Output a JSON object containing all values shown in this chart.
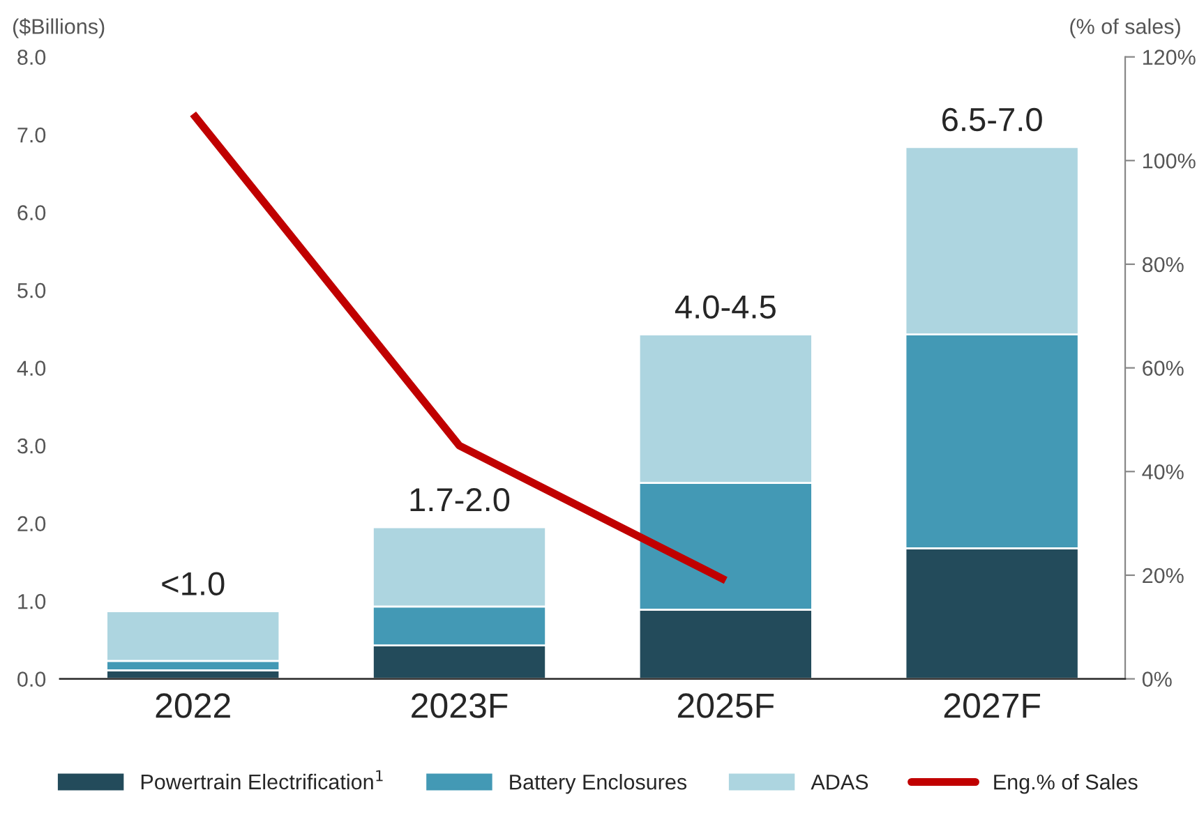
{
  "chart_data": {
    "type": "bar",
    "stacked": true,
    "categories": [
      "2022",
      "2023F",
      "2025F",
      "2027F"
    ],
    "series": [
      {
        "name": "Powertrain Electrification$^{1}$",
        "color": "#234b5b",
        "values": [
          0.11,
          0.43,
          0.89,
          1.68
        ]
      },
      {
        "name": "Battery Enclosures",
        "color": "#4399b5",
        "values": [
          0.12,
          0.5,
          1.63,
          2.75
        ]
      },
      {
        "name": "ADAS",
        "color": "#add5e0",
        "values": [
          0.64,
          1.02,
          1.91,
          2.41
        ]
      },
      {
        "name": "Eng.% of Sales",
        "type": "line",
        "axis": "y2",
        "color": "#c00000",
        "values": [
          109,
          45,
          19,
          null
        ]
      }
    ],
    "totals": [
      "<1.0",
      "1.7-2.0",
      "4.0-4.5",
      "6.5-7.0"
    ],
    "ylabel": "($Billions)",
    "y2label": "(% of sales)",
    "ylim": [
      0,
      8
    ],
    "yticks": [
      {
        "value": 0,
        "label": "0.0"
      },
      {
        "value": 1,
        "label": "1.0"
      },
      {
        "value": 2,
        "label": "2.0"
      },
      {
        "value": 3,
        "label": "3.0"
      },
      {
        "value": 4,
        "label": "4.0"
      },
      {
        "value": 5,
        "label": "5.0"
      },
      {
        "value": 6,
        "label": "6.0"
      },
      {
        "value": 7,
        "label": "7.0"
      },
      {
        "value": 8,
        "label": "8.0"
      }
    ],
    "y2lim": [
      0,
      120
    ],
    "y2ticks": [
      {
        "value": 0,
        "label": "0%"
      },
      {
        "value": 20,
        "label": "20%"
      },
      {
        "value": 40,
        "label": "40%"
      },
      {
        "value": 60,
        "label": "60%"
      },
      {
        "value": 80,
        "label": "80%"
      },
      {
        "value": 100,
        "label": "100%"
      },
      {
        "value": 120,
        "label": "120%"
      }
    ],
    "legend": "bottom",
    "grid": false
  }
}
